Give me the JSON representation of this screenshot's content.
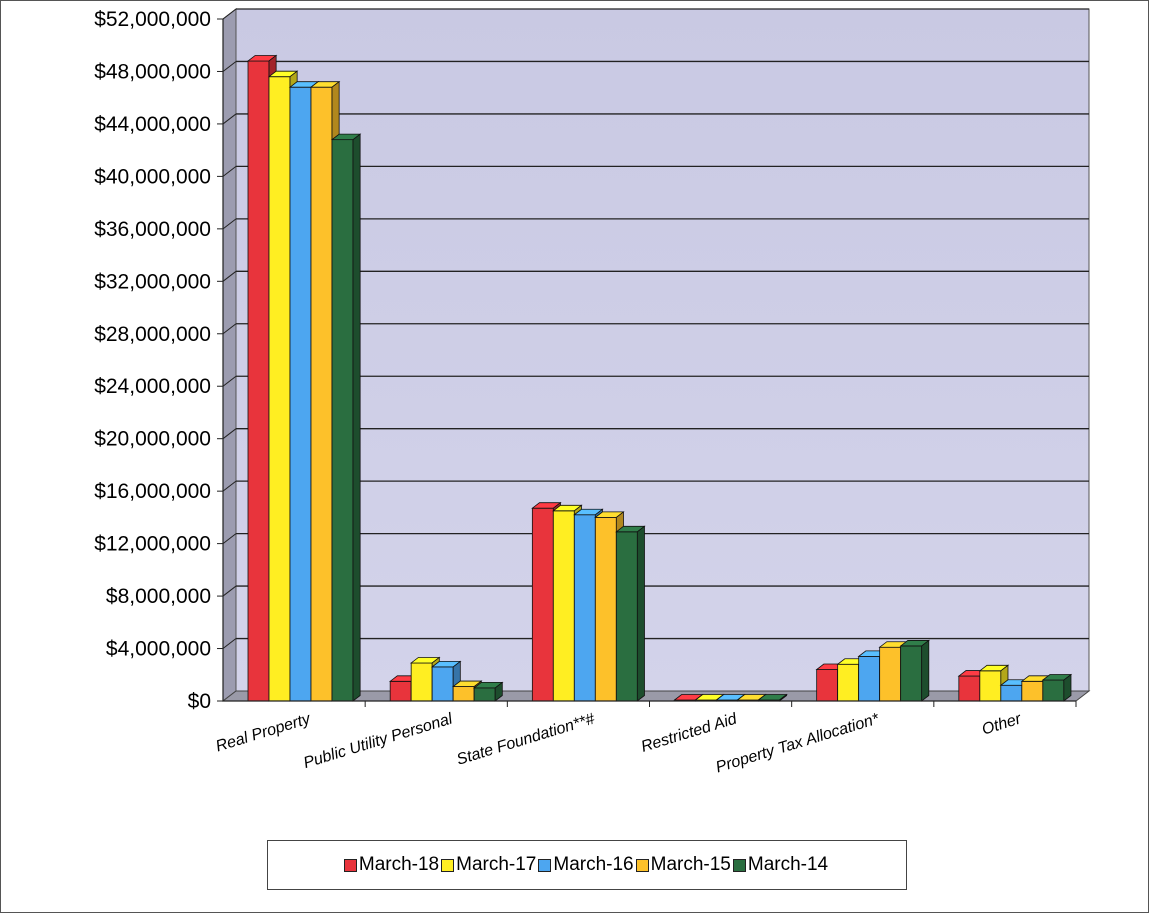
{
  "chart_data": {
    "type": "bar",
    "categories": [
      "Real Property",
      "Public Utility Personal",
      "State Foundation**#",
      "Restricted Aid",
      "Property Tax Allocation*",
      "Other"
    ],
    "series": [
      {
        "name": "March-18",
        "color": "#e8343c",
        "values": [
          48800000,
          1500000,
          14700000,
          0,
          2400000,
          1900000
        ]
      },
      {
        "name": "March-17",
        "color": "#ffee22",
        "values": [
          47600000,
          2900000,
          14500000,
          0,
          2800000,
          2300000
        ]
      },
      {
        "name": "March-16",
        "color": "#4da6f0",
        "values": [
          46800000,
          2600000,
          14200000,
          0,
          3400000,
          1200000
        ]
      },
      {
        "name": "March-15",
        "color": "#fdc12a",
        "values": [
          46800000,
          1100000,
          14000000,
          0,
          4100000,
          1500000
        ]
      },
      {
        "name": "March-14",
        "color": "#2a6e40",
        "values": [
          42800000,
          1000000,
          12900000,
          0,
          4200000,
          1600000
        ]
      }
    ],
    "ylim": [
      0,
      52000000
    ],
    "yticks": [
      "$0",
      "$4,000,000",
      "$8,000,000",
      "$12,000,000",
      "$16,000,000",
      "$20,000,000",
      "$24,000,000",
      "$28,000,000",
      "$32,000,000",
      "$36,000,000",
      "$40,000,000",
      "$44,000,000",
      "$48,000,000",
      "$52,000,000"
    ],
    "grid": true,
    "legend": "bottom",
    "title": "",
    "xlabel": "",
    "ylabel": ""
  }
}
